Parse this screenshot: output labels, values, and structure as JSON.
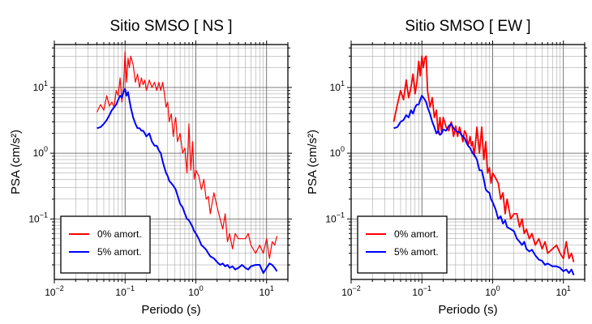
{
  "chart_data": [
    {
      "type": "line",
      "title": "Sitio SMSO [ NS ]",
      "xlabel": "Periodo (s)",
      "ylabel": "PSA (cm/s²)",
      "xscale": "log",
      "yscale": "log",
      "xlim": [
        0.01,
        20
      ],
      "ylim": [
        0.012,
        45
      ],
      "grid": true,
      "legend_position": "bottom-left",
      "x_ticks": [
        {
          "base": "10",
          "exp": "−2"
        },
        {
          "base": "10",
          "exp": "−1"
        },
        {
          "base": "10",
          "exp": "0"
        },
        {
          "base": "10",
          "exp": "1"
        }
      ],
      "y_ticks": [
        {
          "base": "10",
          "exp": "−1"
        },
        {
          "base": "10",
          "exp": "0"
        },
        {
          "base": "10",
          "exp": "1"
        }
      ],
      "series": [
        {
          "name": "0% amort.",
          "color": "#ff0000",
          "x": [
            0.04,
            0.045,
            0.05,
            0.055,
            0.06,
            0.065,
            0.07,
            0.075,
            0.08,
            0.085,
            0.09,
            0.095,
            0.1,
            0.105,
            0.11,
            0.115,
            0.12,
            0.13,
            0.14,
            0.15,
            0.16,
            0.17,
            0.18,
            0.19,
            0.2,
            0.22,
            0.24,
            0.26,
            0.28,
            0.3,
            0.32,
            0.34,
            0.36,
            0.38,
            0.4,
            0.42,
            0.45,
            0.48,
            0.5,
            0.52,
            0.55,
            0.6,
            0.65,
            0.7,
            0.75,
            0.8,
            0.85,
            0.9,
            0.95,
            1.0,
            1.1,
            1.2,
            1.3,
            1.4,
            1.5,
            1.6,
            1.8,
            2.0,
            2.2,
            2.4,
            2.6,
            2.8,
            3.0,
            3.3,
            3.6,
            4.0,
            4.5,
            5.0,
            5.5,
            6.0,
            7.0,
            8.0,
            9.0,
            10.0,
            11.0,
            12.0,
            13.0,
            14.0
          ],
          "y": [
            4.2,
            5.5,
            4.5,
            7.5,
            5.2,
            6.0,
            5.0,
            9.0,
            7.5,
            14,
            6.0,
            10,
            35,
            12,
            28,
            20,
            30,
            22,
            12,
            16,
            10,
            14,
            11,
            13,
            9.0,
            13,
            10,
            12,
            9.0,
            12,
            9.0,
            12,
            8.0,
            5.0,
            6.0,
            3.0,
            4.0,
            1.8,
            2.8,
            3.5,
            1.5,
            2.0,
            1.0,
            1.2,
            0.5,
            2.8,
            0.55,
            1.5,
            0.4,
            0.55,
            0.45,
            0.28,
            0.4,
            0.2,
            0.22,
            0.12,
            0.25,
            0.15,
            0.1,
            0.07,
            0.12,
            0.045,
            0.06,
            0.035,
            0.06,
            0.05,
            0.05,
            0.05,
            0.06,
            0.04,
            0.03,
            0.04,
            0.03,
            0.05,
            0.025,
            0.045,
            0.04,
            0.055
          ]
        },
        {
          "name": "5% amort.",
          "color": "#0000ff",
          "x": [
            0.04,
            0.045,
            0.05,
            0.055,
            0.06,
            0.065,
            0.07,
            0.075,
            0.08,
            0.085,
            0.09,
            0.095,
            0.1,
            0.105,
            0.11,
            0.115,
            0.12,
            0.13,
            0.14,
            0.15,
            0.16,
            0.17,
            0.18,
            0.19,
            0.2,
            0.22,
            0.24,
            0.26,
            0.28,
            0.3,
            0.32,
            0.34,
            0.36,
            0.38,
            0.4,
            0.42,
            0.45,
            0.48,
            0.5,
            0.52,
            0.55,
            0.6,
            0.65,
            0.7,
            0.75,
            0.8,
            0.85,
            0.9,
            0.95,
            1.0,
            1.1,
            1.2,
            1.3,
            1.4,
            1.5,
            1.6,
            1.8,
            2.0,
            2.2,
            2.4,
            2.6,
            2.8,
            3.0,
            3.3,
            3.6,
            4.0,
            4.5,
            5.0,
            5.5,
            6.0,
            7.0,
            8.0,
            9.0,
            10.0,
            11.0,
            12.0,
            13.0,
            14.0
          ],
          "y": [
            2.4,
            2.5,
            2.8,
            3.2,
            3.8,
            4.5,
            5.0,
            5.5,
            6.5,
            7.5,
            7.0,
            8.5,
            9.5,
            7.5,
            8.5,
            6.5,
            5.0,
            3.5,
            2.8,
            2.4,
            2.4,
            2.2,
            2.2,
            2.0,
            1.8,
            2.0,
            1.5,
            1.3,
            1.3,
            1.1,
            1.0,
            0.75,
            0.6,
            0.5,
            0.45,
            0.38,
            0.35,
            0.32,
            0.3,
            0.28,
            0.23,
            0.17,
            0.15,
            0.12,
            0.1,
            0.095,
            0.085,
            0.075,
            0.065,
            0.06,
            0.05,
            0.04,
            0.037,
            0.034,
            0.03,
            0.027,
            0.025,
            0.022,
            0.02,
            0.021,
            0.019,
            0.02,
            0.018,
            0.019,
            0.017,
            0.018,
            0.02,
            0.018,
            0.017,
            0.019,
            0.02,
            0.02,
            0.015,
            0.018,
            0.021,
            0.02,
            0.018,
            0.016
          ]
        }
      ]
    },
    {
      "type": "line",
      "title": "Sitio SMSO [ EW ]",
      "xlabel": "Periodo (s)",
      "ylabel": "PSA (cm/s²)",
      "xscale": "log",
      "yscale": "log",
      "xlim": [
        0.01,
        20
      ],
      "ylim": [
        0.012,
        45
      ],
      "grid": true,
      "legend_position": "bottom-left",
      "x_ticks": [
        {
          "base": "10",
          "exp": "−2"
        },
        {
          "base": "10",
          "exp": "−1"
        },
        {
          "base": "10",
          "exp": "0"
        },
        {
          "base": "10",
          "exp": "1"
        }
      ],
      "y_ticks": [
        {
          "base": "10",
          "exp": "−1"
        },
        {
          "base": "10",
          "exp": "0"
        },
        {
          "base": "10",
          "exp": "1"
        }
      ],
      "series": [
        {
          "name": "0% amort.",
          "color": "#ff0000",
          "x": [
            0.04,
            0.045,
            0.05,
            0.055,
            0.06,
            0.065,
            0.07,
            0.075,
            0.08,
            0.085,
            0.09,
            0.095,
            0.1,
            0.105,
            0.11,
            0.115,
            0.12,
            0.13,
            0.14,
            0.15,
            0.16,
            0.17,
            0.18,
            0.19,
            0.2,
            0.22,
            0.24,
            0.26,
            0.28,
            0.3,
            0.32,
            0.34,
            0.36,
            0.38,
            0.4,
            0.42,
            0.45,
            0.48,
            0.5,
            0.52,
            0.55,
            0.6,
            0.65,
            0.7,
            0.75,
            0.8,
            0.85,
            0.9,
            0.95,
            1.0,
            1.1,
            1.2,
            1.3,
            1.4,
            1.5,
            1.6,
            1.8,
            2.0,
            2.2,
            2.4,
            2.6,
            2.8,
            3.0,
            3.3,
            3.6,
            4.0,
            4.5,
            5.0,
            5.5,
            6.0,
            7.0,
            8.0,
            9.0,
            10.0,
            11.0,
            12.0,
            13.0,
            14.0
          ],
          "y": [
            3.0,
            5.5,
            9.0,
            6.5,
            13,
            7.0,
            10,
            16,
            8.0,
            12,
            25,
            15,
            30,
            20,
            28,
            30,
            9.0,
            5.0,
            7.0,
            3.5,
            4.5,
            2.0,
            3.5,
            2.0,
            3.5,
            2.5,
            2.2,
            3.0,
            1.8,
            2.6,
            1.8,
            2.5,
            2.0,
            1.5,
            2.2,
            2.0,
            1.3,
            1.8,
            1.3,
            1.5,
            0.9,
            2.5,
            1.0,
            2.5,
            0.8,
            1.5,
            0.5,
            0.6,
            0.35,
            0.5,
            0.42,
            0.35,
            0.2,
            0.25,
            0.12,
            0.2,
            0.1,
            0.12,
            0.12,
            0.075,
            0.1,
            0.06,
            0.07,
            0.05,
            0.06,
            0.04,
            0.05,
            0.035,
            0.045,
            0.03,
            0.035,
            0.04,
            0.03,
            0.025,
            0.045,
            0.025,
            0.03,
            0.022
          ]
        },
        {
          "name": "5% amort.",
          "color": "#0000ff",
          "x": [
            0.04,
            0.045,
            0.05,
            0.055,
            0.06,
            0.065,
            0.07,
            0.075,
            0.08,
            0.085,
            0.09,
            0.095,
            0.1,
            0.105,
            0.11,
            0.115,
            0.12,
            0.13,
            0.14,
            0.15,
            0.16,
            0.17,
            0.18,
            0.19,
            0.2,
            0.22,
            0.24,
            0.26,
            0.28,
            0.3,
            0.32,
            0.34,
            0.36,
            0.38,
            0.4,
            0.42,
            0.45,
            0.48,
            0.5,
            0.52,
            0.55,
            0.6,
            0.65,
            0.7,
            0.75,
            0.8,
            0.85,
            0.9,
            0.95,
            1.0,
            1.1,
            1.2,
            1.3,
            1.4,
            1.5,
            1.6,
            1.8,
            2.0,
            2.2,
            2.4,
            2.6,
            2.8,
            3.0,
            3.3,
            3.6,
            4.0,
            4.5,
            5.0,
            5.5,
            6.0,
            7.0,
            8.0,
            9.0,
            10.0,
            11.0,
            12.0,
            13.0,
            14.0
          ],
          "y": [
            2.4,
            2.5,
            3.0,
            3.2,
            3.8,
            3.5,
            4.5,
            4.0,
            5.0,
            5.5,
            5.5,
            6.5,
            7.5,
            7.0,
            6.5,
            6.0,
            5.0,
            4.0,
            3.0,
            2.5,
            2.0,
            2.2,
            1.9,
            2.0,
            2.3,
            2.2,
            2.6,
            2.8,
            2.4,
            2.2,
            2.1,
            2.1,
            1.9,
            1.8,
            1.7,
            1.5,
            1.3,
            1.2,
            1.1,
            1.0,
            0.95,
            0.8,
            0.55,
            0.55,
            0.4,
            0.28,
            0.26,
            0.25,
            0.2,
            0.18,
            0.14,
            0.1,
            0.11,
            0.085,
            0.095,
            0.075,
            0.07,
            0.065,
            0.05,
            0.045,
            0.04,
            0.045,
            0.035,
            0.032,
            0.034,
            0.028,
            0.024,
            0.023,
            0.02,
            0.021,
            0.019,
            0.019,
            0.018,
            0.016,
            0.017,
            0.015,
            0.017,
            0.014
          ]
        }
      ]
    }
  ]
}
